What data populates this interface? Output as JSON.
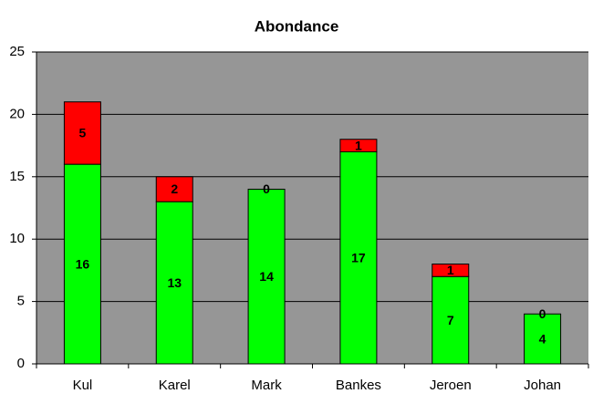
{
  "chart_data": {
    "type": "stacked-bar",
    "title": "Abondance",
    "categories": [
      "Kul",
      "Karel",
      "Mark",
      "Bankes",
      "Jeroen",
      "Johan"
    ],
    "series": [
      {
        "color": "#00ff00",
        "values": [
          16,
          13,
          14,
          17,
          7,
          4
        ]
      },
      {
        "color": "#ff0000",
        "values": [
          5,
          2,
          0,
          1,
          1,
          0
        ]
      }
    ],
    "ylim": [
      0,
      25
    ],
    "yticks": [
      0,
      5,
      10,
      15,
      20,
      25
    ],
    "grid": true,
    "plot_background": "#969696"
  }
}
